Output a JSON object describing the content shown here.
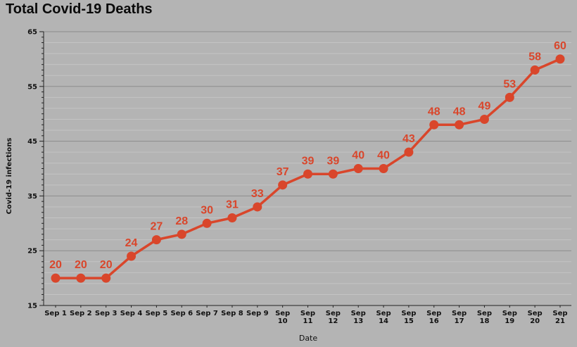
{
  "chart_data": {
    "type": "line",
    "title": "Total Covid-19 Deaths",
    "xlabel": "Date",
    "ylabel": "Covid-19 infections",
    "ylim": [
      15,
      65
    ],
    "yticks": [
      15,
      25,
      35,
      45,
      55,
      65
    ],
    "grid": true,
    "legend": "none",
    "categories": [
      [
        "Sep 1"
      ],
      [
        "Sep 2"
      ],
      [
        "Sep 3"
      ],
      [
        "Sep 4"
      ],
      [
        "Sep 5"
      ],
      [
        "Sep 6"
      ],
      [
        "Sep 7"
      ],
      [
        "Sep 8"
      ],
      [
        "Sep 9"
      ],
      [
        "Sep",
        "10"
      ],
      [
        "Sep",
        "11"
      ],
      [
        "Sep",
        "12"
      ],
      [
        "Sep",
        "13"
      ],
      [
        "Sep",
        "14"
      ],
      [
        "Sep",
        "15"
      ],
      [
        "Sep",
        "16"
      ],
      [
        "Sep",
        "17"
      ],
      [
        "Sep",
        "18"
      ],
      [
        "Sep",
        "19"
      ],
      [
        "Sep",
        "20"
      ],
      [
        "Sep",
        "21"
      ]
    ],
    "series": [
      {
        "values": [
          20,
          20,
          20,
          24,
          27,
          28,
          30,
          31,
          33,
          37,
          39,
          39,
          40,
          40,
          43,
          48,
          48,
          49,
          53,
          58,
          60
        ]
      }
    ],
    "colors": {
      "line": "#d9462b",
      "label": "#d9462b",
      "grid_major": "#8c8c8c",
      "grid_minor": "#c4c4c4",
      "axis": "#222222"
    }
  }
}
